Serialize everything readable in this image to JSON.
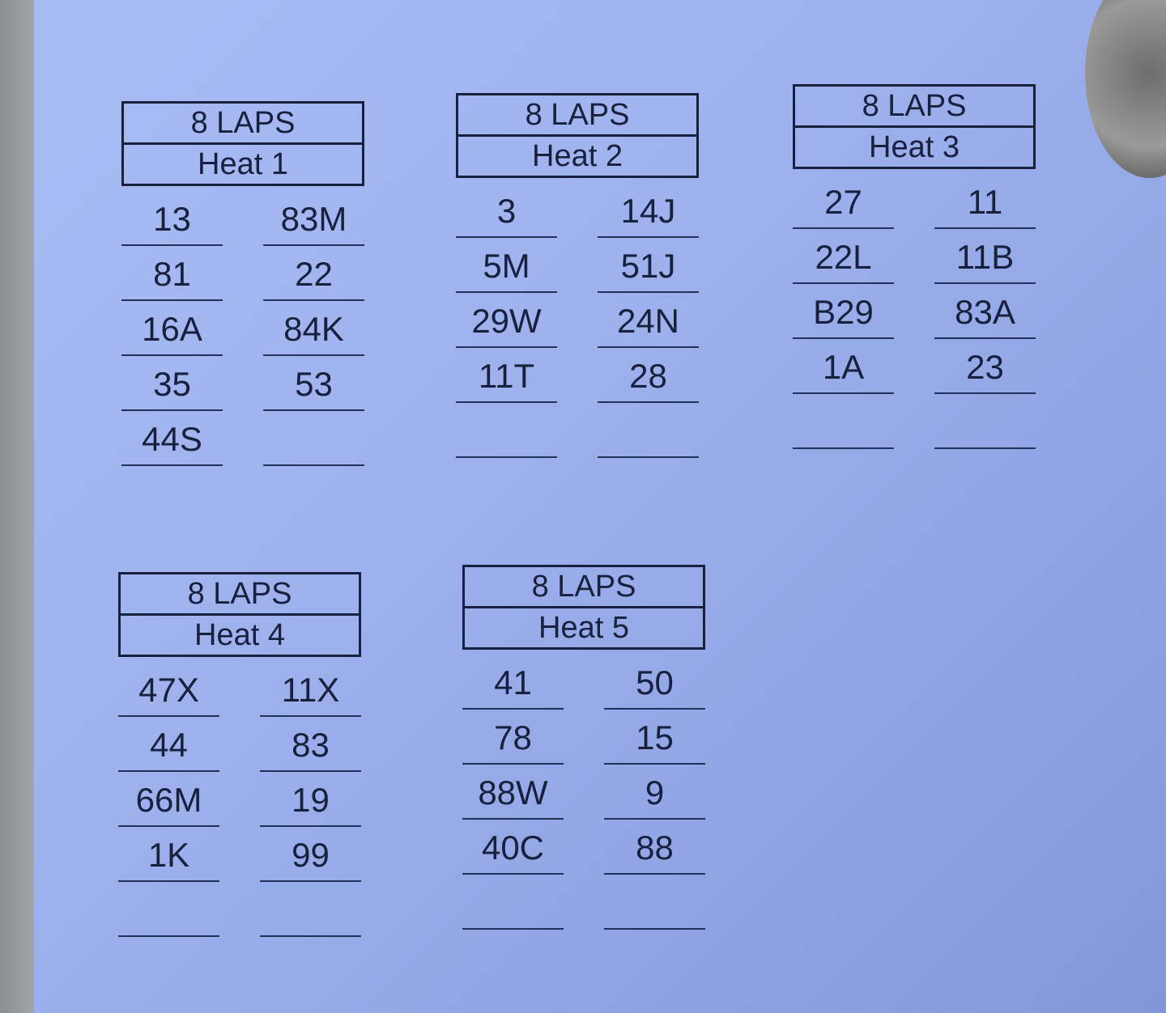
{
  "heats": [
    {
      "laps": "8 LAPS",
      "title": "Heat 1",
      "left": [
        "13",
        "81",
        "16A",
        "35",
        "44S"
      ],
      "right": [
        "83M",
        "22",
        "84K",
        "53",
        ""
      ]
    },
    {
      "laps": "8 LAPS",
      "title": "Heat 2",
      "left": [
        "3",
        "5M",
        "29W",
        "11T",
        ""
      ],
      "right": [
        "14J",
        "51J",
        "24N",
        "28",
        ""
      ]
    },
    {
      "laps": "8 LAPS",
      "title": "Heat 3",
      "left": [
        "27",
        "22L",
        "B29",
        "1A",
        ""
      ],
      "right": [
        "11",
        "11B",
        "83A",
        "23",
        ""
      ]
    },
    {
      "laps": "8 LAPS",
      "title": "Heat 4",
      "left": [
        "47X",
        "44",
        "66M",
        "1K",
        ""
      ],
      "right": [
        "11X",
        "83",
        "19",
        "99",
        ""
      ]
    },
    {
      "laps": "8 LAPS",
      "title": "Heat 5",
      "left": [
        "41",
        "78",
        "88W",
        "40C",
        ""
      ],
      "right": [
        "50",
        "15",
        "9",
        "88",
        ""
      ]
    }
  ]
}
